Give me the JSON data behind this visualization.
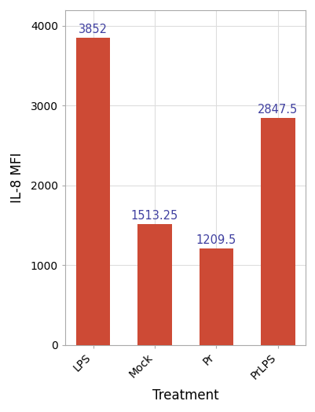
{
  "categories": [
    "LPS",
    "Mock",
    "Pr",
    "PrLPS"
  ],
  "values": [
    3852,
    1513.25,
    1209.5,
    2847.5
  ],
  "bar_color": "#CD4A35",
  "title": "",
  "xlabel": "Treatment",
  "ylabel": "IL-8 MFI",
  "ylim": [
    0,
    4200
  ],
  "yticks": [
    0,
    1000,
    2000,
    3000,
    4000
  ],
  "label_color": "#4040A0",
  "label_fontsize": 10.5,
  "axis_label_fontsize": 12,
  "tick_label_fontsize": 10,
  "background_color": "#FFFFFF",
  "grid_color": "#DDDDDD",
  "bar_width": 0.55
}
